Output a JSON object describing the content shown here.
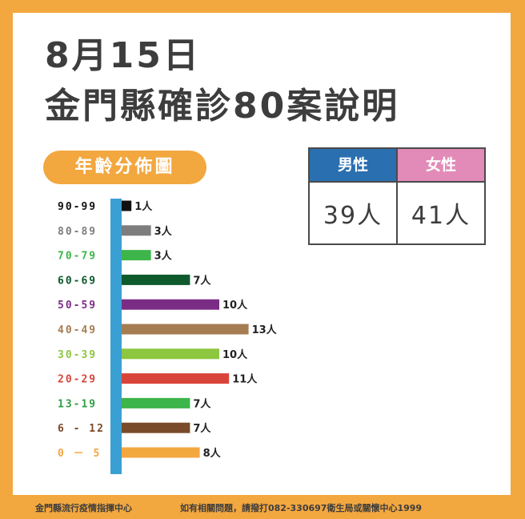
{
  "header": {
    "date": "8月15日",
    "title": "金門縣確診80案說明"
  },
  "section_label": "年齡分佈圖",
  "gender_table": {
    "male_label": "男性",
    "male_value": "39人",
    "female_label": "女性",
    "female_value": "41人"
  },
  "footer": {
    "left": "金門縣流行疫情指揮中心",
    "right": "如有相關問題，請撥打082-330697衛生局或關懷中心1999"
  },
  "colors": {
    "background": "#f3a73f",
    "axis": "#3aa0d4",
    "male": "#2a6fb0",
    "female": "#e28bb8"
  },
  "chart_data": {
    "type": "bar",
    "orientation": "horizontal",
    "categories": [
      "90-99",
      "80-89",
      "70-79",
      "60-69",
      "50-59",
      "40-49",
      "30-39",
      "20-29",
      "13-19",
      "6 - 12",
      "0 － 5"
    ],
    "values": [
      1,
      3,
      3,
      7,
      10,
      13,
      10,
      11,
      7,
      7,
      8
    ],
    "value_labels": [
      "1人",
      "3人",
      "3人",
      "7人",
      "10人",
      "13人",
      "10人",
      "11人",
      "7人",
      "7人",
      "8人"
    ],
    "bar_colors": [
      "#111111",
      "#7d7d7d",
      "#3db54a",
      "#0e5a2c",
      "#7b2d86",
      "#a67c52",
      "#8dc63f",
      "#d9443a",
      "#3db54a",
      "#7a4b2a",
      "#f3a73f"
    ],
    "label_colors": [
      "#111111",
      "#7d7d7d",
      "#3db54a",
      "#0e5a2c",
      "#7b2d86",
      "#a67c52",
      "#8dc63f",
      "#d9443a",
      "#2f9e44",
      "#7a4b2a",
      "#f3a73f"
    ],
    "title": "年齡分佈圖",
    "xlabel": "",
    "ylabel": "",
    "grid": false
  }
}
